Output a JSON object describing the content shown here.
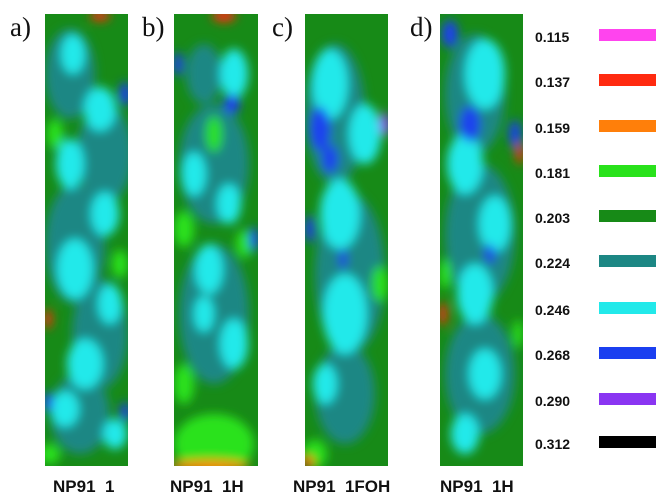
{
  "panels": [
    {
      "label": "a)",
      "caption": "NP91  1"
    },
    {
      "label": "b)",
      "caption": "NP91  1H"
    },
    {
      "label": "c)",
      "caption": "NP91  1FOH"
    },
    {
      "label": "d)",
      "caption": "NP91  1H"
    }
  ],
  "legend": [
    {
      "value": "0.115",
      "color": "#ff44ee"
    },
    {
      "value": "0.137",
      "color": "#ff2a10"
    },
    {
      "value": "0.159",
      "color": "#ff7f0a"
    },
    {
      "value": "0.181",
      "color": "#29e21b"
    },
    {
      "value": "0.203",
      "color": "#178a17"
    },
    {
      "value": "0.224",
      "color": "#1c8784"
    },
    {
      "value": "0.246",
      "color": "#22e9ea"
    },
    {
      "value": "0.268",
      "color": "#1b3ff0"
    },
    {
      "value": "0.290",
      "color": "#8a35f2"
    },
    {
      "value": "0.312",
      "color": "#000000"
    }
  ]
}
